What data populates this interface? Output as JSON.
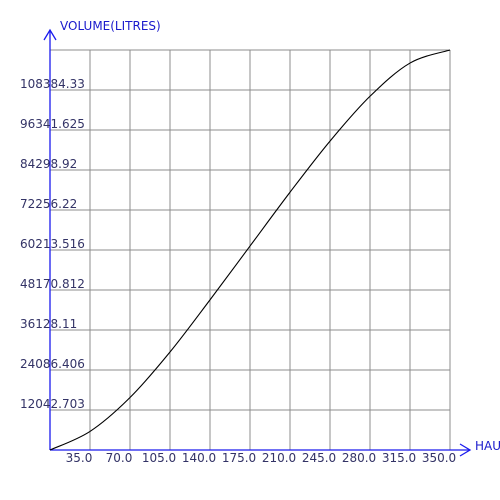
{
  "chart_data": {
    "type": "line",
    "title": "",
    "xlabel": "HAU",
    "ylabel": "VOLUME(LITRES)",
    "xlim": [
      0,
      350
    ],
    "ylim": [
      0,
      120427.0
    ],
    "grid": true,
    "x_ticks": [
      "35.0",
      "70.0",
      "105.0",
      "140.0",
      "175.0",
      "210.0",
      "245.0",
      "280.0",
      "315.0",
      "350.0"
    ],
    "x_tick_values": [
      35,
      70,
      105,
      140,
      175,
      210,
      245,
      280,
      315,
      350
    ],
    "y_ticks": [
      "12042.703",
      "24086.406",
      "36128.11",
      "48170.812",
      "60213.516",
      "72256.22",
      "84298.92",
      "96341.625",
      "108384.33"
    ],
    "y_tick_values": [
      12042.703,
      24086.406,
      36128.11,
      48170.812,
      60213.516,
      72256.22,
      84298.92,
      96341.625,
      108384.33
    ],
    "series": [
      {
        "x": [
          0,
          35,
          70,
          105,
          140,
          175,
          210,
          245,
          280,
          315,
          350
        ],
        "y": [
          0,
          5600,
          15800,
          29500,
          45200,
          61400,
          77600,
          93000,
          106500,
          116500,
          120427
        ]
      }
    ],
    "colors": {
      "axis": "#1a1aee",
      "grid": "#8c8c8c",
      "line": "#000000",
      "label": "#333366",
      "title": "#1a1acc"
    }
  }
}
